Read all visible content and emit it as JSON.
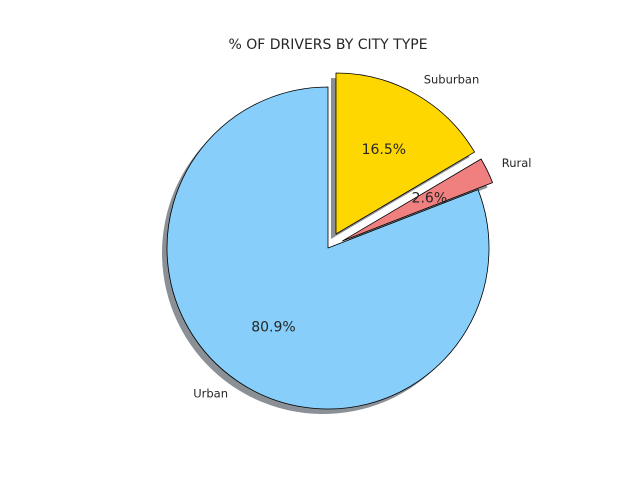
{
  "chart_data": {
    "type": "pie",
    "title": "% OF DRIVERS BY CITY TYPE",
    "slices": [
      {
        "label": "Urban",
        "value": 80.9,
        "pct_label": "80.9%",
        "color": "#87CEFA",
        "exploded": false
      },
      {
        "label": "Rural",
        "value": 2.6,
        "pct_label": "2.6%",
        "color": "#F08080",
        "exploded": true
      },
      {
        "label": "Suburban",
        "value": 16.5,
        "pct_label": "16.5%",
        "color": "#FFD700",
        "exploded": true
      }
    ],
    "shadow": true,
    "start_angle_deg": 90,
    "direction": "counterclockwise",
    "edge_color": "#000000",
    "shadow_color": "#8a9096"
  }
}
